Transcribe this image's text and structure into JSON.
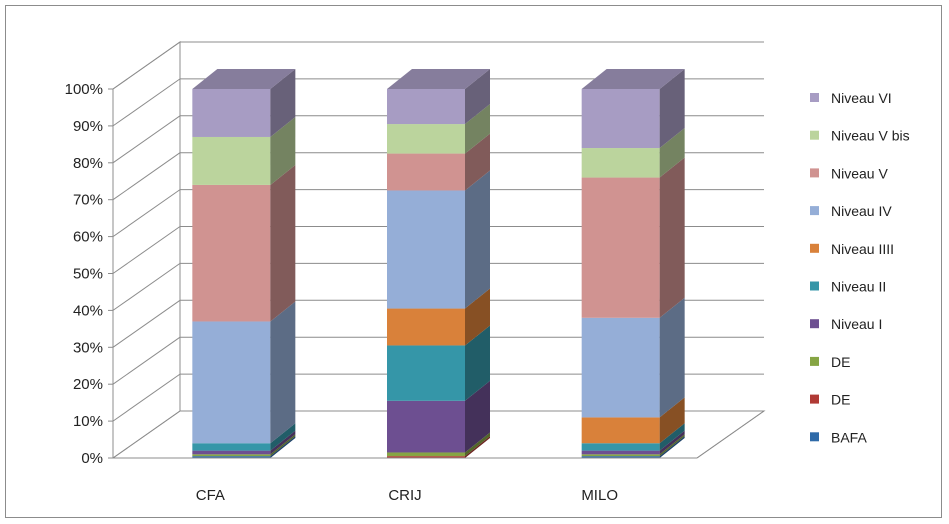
{
  "chart_data": {
    "type": "bar",
    "stacked": "percent",
    "style": "3d-column",
    "categories": [
      "CFA",
      "CRIJ",
      "MILO"
    ],
    "y_ticks": [
      "0%",
      "10%",
      "20%",
      "30%",
      "40%",
      "50%",
      "60%",
      "70%",
      "80%",
      "90%",
      "100%"
    ],
    "ylim": [
      0,
      100
    ],
    "grid": true,
    "legend_position": "right",
    "series": [
      {
        "name": "BAFA",
        "color": "#2f6aa8",
        "values": [
          0.5,
          0.0,
          0.5
        ]
      },
      {
        "name": "DE",
        "color": "#b03a35",
        "values": [
          0.0,
          0.5,
          0.0
        ]
      },
      {
        "name": "DE",
        "color": "#86a544",
        "values": [
          0.5,
          1.0,
          0.5
        ]
      },
      {
        "name": "Niveau I",
        "color": "#6d4f91",
        "values": [
          1.0,
          14.0,
          1.0
        ]
      },
      {
        "name": "Niveau II",
        "color": "#3596a8",
        "values": [
          2.0,
          15.0,
          2.0
        ]
      },
      {
        "name": "Niveau IIII",
        "color": "#d9813a",
        "values": [
          0.0,
          10.0,
          7.0
        ]
      },
      {
        "name": "Niveau IV",
        "color": "#95aed7",
        "values": [
          33.0,
          32.0,
          27.0
        ]
      },
      {
        "name": "Niveau V",
        "color": "#d09391",
        "values": [
          37.0,
          10.0,
          38.0
        ]
      },
      {
        "name": "Niveau V bis",
        "color": "#bbd49d",
        "values": [
          13.0,
          8.0,
          8.0
        ]
      },
      {
        "name": "Niveau VI",
        "color": "#a79cc3",
        "values": [
          13.0,
          9.5,
          16.0
        ]
      }
    ]
  }
}
